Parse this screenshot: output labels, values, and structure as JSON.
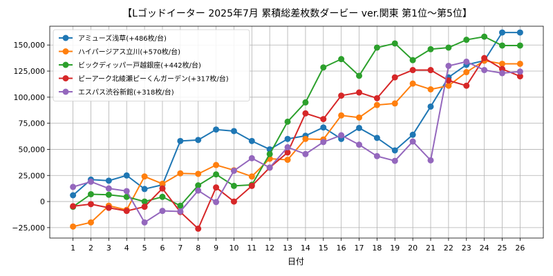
{
  "chart_data": {
    "type": "line",
    "title": "【Lゴッドイーター 2025年7月  累積総差枚数ダービー ver.関東 第1位～第5位】",
    "xlabel": "日付",
    "ylabel": "",
    "x": [
      1,
      2,
      3,
      4,
      5,
      6,
      7,
      8,
      9,
      10,
      11,
      12,
      13,
      14,
      15,
      16,
      17,
      18,
      19,
      20,
      21,
      22,
      23,
      24,
      25,
      26
    ],
    "xlim": [
      -0.3,
      27.3
    ],
    "ylim": [
      -35000,
      168000
    ],
    "yticks": [
      -25000,
      0,
      25000,
      50000,
      75000,
      100000,
      125000,
      150000
    ],
    "ytick_labels": [
      "−25,000",
      "0",
      "25,000",
      "50,000",
      "75,000",
      "100,000",
      "125,000",
      "150,000"
    ],
    "grid": true,
    "legend_position": "top-left",
    "series": [
      {
        "name": "アミューズ浅草(+486枚/台)",
        "color": "#1f77b4",
        "values": [
          6000,
          21000,
          20000,
          25000,
          12000,
          16000,
          58000,
          59000,
          69000,
          67500,
          58000,
          50000,
          60000,
          63000,
          71000,
          60000,
          70500,
          61000,
          49000,
          64000,
          91000,
          119000,
          131000,
          135000,
          162000,
          162000
        ]
      },
      {
        "name": "ハイパージアス立川(+570枚/台)",
        "color": "#ff7f0e",
        "values": [
          -24000,
          -20000,
          -4000,
          -8000,
          24000,
          17000,
          27000,
          26500,
          35000,
          30000,
          24000,
          41000,
          40000,
          60000,
          59500,
          82500,
          80500,
          92500,
          94000,
          113000,
          107500,
          111000,
          124000,
          135000,
          132000,
          132000
        ]
      },
      {
        "name": "ビックディッパー戸越銀座(+442枚/台)",
        "color": "#2ca02c",
        "values": [
          -5000,
          7000,
          6500,
          4500,
          0,
          4500,
          -4000,
          15500,
          26000,
          15000,
          16000,
          45500,
          76500,
          95000,
          128500,
          136500,
          120500,
          147500,
          151500,
          135500,
          146000,
          147500,
          155000,
          158000,
          149500,
          149500
        ]
      },
      {
        "name": "ピーアーク北綾瀬ピーくんガーデン(+317枚/台)",
        "color": "#d62728",
        "values": [
          -4500,
          -2500,
          -6000,
          -9000,
          -5000,
          12500,
          -10000,
          -26000,
          13500,
          0,
          15000,
          32500,
          47000,
          84500,
          79000,
          101500,
          104500,
          99000,
          119000,
          126000,
          126000,
          116000,
          111000,
          137500,
          127000,
          120000
        ]
      },
      {
        "name": "エスパス渋谷新館(+318枚/台)",
        "color": "#9467bd",
        "values": [
          14000,
          19000,
          12500,
          10000,
          -20000,
          -9000,
          -9500,
          10500,
          -500,
          29500,
          41500,
          32500,
          52000,
          45500,
          57000,
          63500,
          54500,
          43500,
          39000,
          57500,
          39500,
          130000,
          134000,
          126000,
          123000,
          124500
        ]
      }
    ]
  }
}
